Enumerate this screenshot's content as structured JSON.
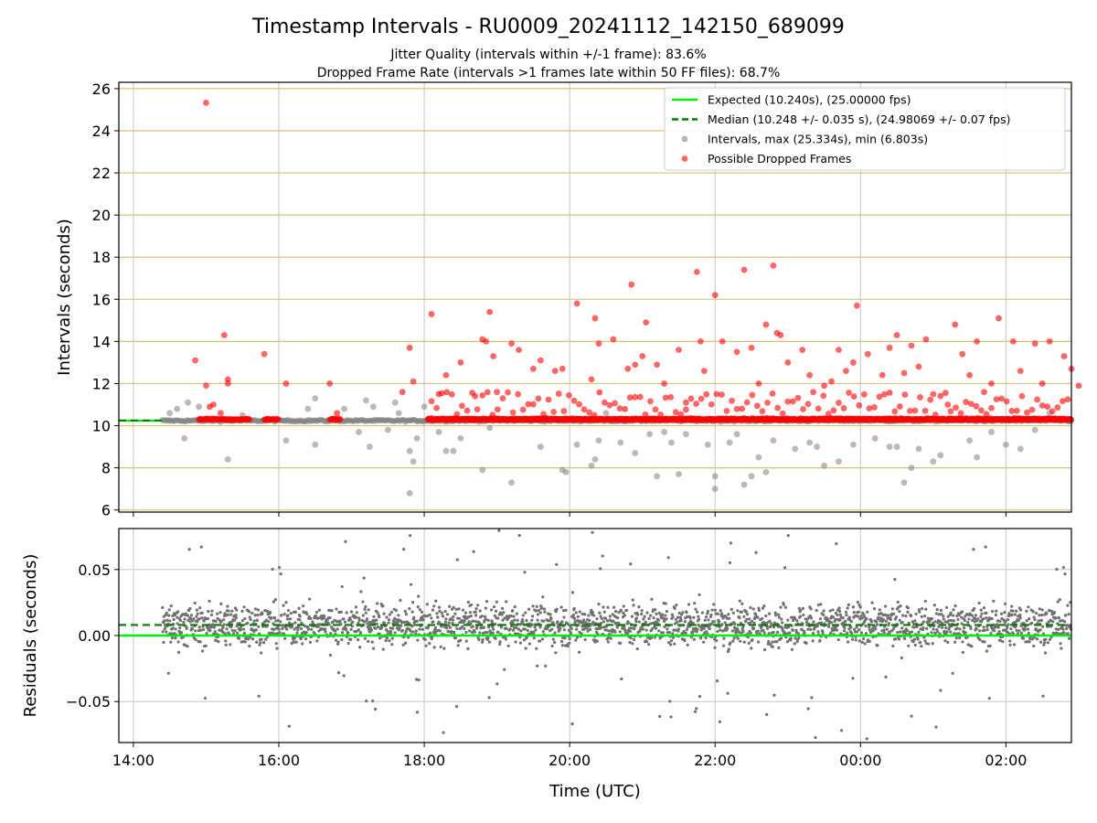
{
  "chart_data": [
    {
      "type": "scatter",
      "title": "Timestamp Intervals - RU0009_20241112_142150_689099",
      "subtitle_1": "Jitter Quality (intervals within +/-1 frame): 83.6%",
      "subtitle_2": "Dropped Frame Rate (intervals >1 frames late within 50 FF files): 68.7%",
      "ylabel": "Intervals (seconds)",
      "ylim": [
        5.9,
        26.3
      ],
      "yticks": [
        "6",
        "8",
        "10",
        "12",
        "14",
        "16",
        "18",
        "20",
        "22",
        "24",
        "26"
      ],
      "grid": true,
      "legend_position": "top-right",
      "expected_value": 10.24,
      "median_value": 10.248,
      "series": [
        {
          "name": "Expected (10.240s), (25.00000 fps)",
          "style": "solid-line",
          "color": "#00ee00"
        },
        {
          "name": "Median (10.248 +/- 0.035 s), (24.98069 +/- 0.07 fps)",
          "style": "dashed-line",
          "color": "#007a00"
        },
        {
          "name": "Intervals, max (25.334s), min (6.803s)",
          "style": "points",
          "color": "#808080",
          "points": [
            [
              14.5,
              10.6
            ],
            [
              14.6,
              10.8
            ],
            [
              14.7,
              9.4
            ],
            [
              14.75,
              11.1
            ],
            [
              14.9,
              10.9
            ],
            [
              15.3,
              8.4
            ],
            [
              15.5,
              10.5
            ],
            [
              16.1,
              9.3
            ],
            [
              16.4,
              10.8
            ],
            [
              16.5,
              9.1
            ],
            [
              16.5,
              11.3
            ],
            [
              16.9,
              10.8
            ],
            [
              17.1,
              9.7
            ],
            [
              17.2,
              11.2
            ],
            [
              17.25,
              9.0
            ],
            [
              17.3,
              10.9
            ],
            [
              17.5,
              9.8
            ],
            [
              17.6,
              11.1
            ],
            [
              17.65,
              10.6
            ],
            [
              17.8,
              8.8
            ],
            [
              17.85,
              8.3
            ],
            [
              17.8,
              6.8
            ],
            [
              17.9,
              9.4
            ],
            [
              18.0,
              10.9
            ],
            [
              18.2,
              9.7
            ],
            [
              18.3,
              8.8
            ],
            [
              18.4,
              8.8
            ],
            [
              18.5,
              9.4
            ],
            [
              18.8,
              7.9
            ],
            [
              18.9,
              9.9
            ],
            [
              19.2,
              7.3
            ],
            [
              19.6,
              9.0
            ],
            [
              19.9,
              7.9
            ],
            [
              19.95,
              7.8
            ],
            [
              20.1,
              9.1
            ],
            [
              20.3,
              8.1
            ],
            [
              20.35,
              8.4
            ],
            [
              20.4,
              9.3
            ],
            [
              20.5,
              10.6
            ],
            [
              20.7,
              9.2
            ],
            [
              20.9,
              8.7
            ],
            [
              21.1,
              9.6
            ],
            [
              21.2,
              7.6
            ],
            [
              21.3,
              9.7
            ],
            [
              21.4,
              9.2
            ],
            [
              21.5,
              7.7
            ],
            [
              21.6,
              9.6
            ],
            [
              21.9,
              9.1
            ],
            [
              22.0,
              7.0
            ],
            [
              22.0,
              7.6
            ],
            [
              22.2,
              9.2
            ],
            [
              22.3,
              9.6
            ],
            [
              22.4,
              7.2
            ],
            [
              22.5,
              7.6
            ],
            [
              22.6,
              8.5
            ],
            [
              22.7,
              7.8
            ],
            [
              22.8,
              9.3
            ],
            [
              23.1,
              8.9
            ],
            [
              23.3,
              9.2
            ],
            [
              23.4,
              9.0
            ],
            [
              23.5,
              8.1
            ],
            [
              23.7,
              8.3
            ],
            [
              23.9,
              9.1
            ],
            [
              24.2,
              9.4
            ],
            [
              24.4,
              9.0
            ],
            [
              24.5,
              9.0
            ],
            [
              24.6,
              7.3
            ],
            [
              24.7,
              8.0
            ],
            [
              24.8,
              8.9
            ],
            [
              25.0,
              8.3
            ],
            [
              25.1,
              8.6
            ],
            [
              25.5,
              9.3
            ],
            [
              25.6,
              8.5
            ],
            [
              25.8,
              9.7
            ],
            [
              26.0,
              9.1
            ],
            [
              26.2,
              8.9
            ],
            [
              26.4,
              9.8
            ],
            [
              26.6,
              10.6
            ]
          ]
        },
        {
          "name": "Possible Dropped Frames",
          "style": "points",
          "color": "#ff0000",
          "points": [
            [
              15.0,
              25.33
            ],
            [
              14.85,
              13.1
            ],
            [
              15.0,
              11.9
            ],
            [
              15.05,
              10.9
            ],
            [
              15.1,
              11.0
            ],
            [
              15.2,
              10.6
            ],
            [
              15.25,
              14.3
            ],
            [
              15.3,
              12.2
            ],
            [
              15.3,
              12.0
            ],
            [
              15.8,
              13.4
            ],
            [
              16.1,
              12.0
            ],
            [
              16.7,
              12.0
            ],
            [
              16.8,
              10.6
            ],
            [
              17.7,
              11.6
            ],
            [
              17.8,
              13.7
            ],
            [
              17.85,
              12.1
            ],
            [
              18.1,
              15.3
            ],
            [
              18.2,
              11.5
            ],
            [
              18.3,
              12.4
            ],
            [
              18.5,
              13.0
            ],
            [
              18.7,
              11.4
            ],
            [
              18.8,
              14.1
            ],
            [
              18.85,
              14.0
            ],
            [
              18.9,
              15.4
            ],
            [
              18.95,
              13.3
            ],
            [
              19.0,
              11.6
            ],
            [
              19.2,
              13.9
            ],
            [
              19.3,
              13.6
            ],
            [
              19.5,
              12.7
            ],
            [
              19.6,
              13.1
            ],
            [
              19.8,
              12.6
            ],
            [
              19.9,
              12.7
            ],
            [
              20.1,
              15.8
            ],
            [
              20.3,
              12.2
            ],
            [
              20.35,
              15.1
            ],
            [
              20.4,
              13.9
            ],
            [
              20.6,
              14.1
            ],
            [
              20.8,
              12.7
            ],
            [
              20.85,
              16.7
            ],
            [
              20.9,
              12.9
            ],
            [
              21.0,
              13.3
            ],
            [
              21.05,
              14.9
            ],
            [
              21.2,
              12.9
            ],
            [
              21.3,
              12.0
            ],
            [
              21.5,
              13.6
            ],
            [
              21.6,
              11.1
            ],
            [
              21.75,
              17.3
            ],
            [
              21.8,
              14.0
            ],
            [
              21.85,
              12.6
            ],
            [
              22.0,
              16.2
            ],
            [
              22.1,
              14.0
            ],
            [
              22.3,
              13.5
            ],
            [
              22.4,
              17.4
            ],
            [
              22.5,
              13.7
            ],
            [
              22.6,
              12.0
            ],
            [
              22.7,
              14.8
            ],
            [
              22.8,
              17.6
            ],
            [
              22.85,
              14.4
            ],
            [
              22.9,
              14.3
            ],
            [
              23.0,
              13.0
            ],
            [
              23.2,
              13.6
            ],
            [
              23.3,
              12.4
            ],
            [
              23.5,
              11.9
            ],
            [
              23.6,
              12.1
            ],
            [
              23.7,
              13.6
            ],
            [
              23.8,
              12.6
            ],
            [
              23.9,
              13.0
            ],
            [
              23.95,
              15.7
            ],
            [
              24.1,
              13.4
            ],
            [
              24.3,
              12.4
            ],
            [
              24.4,
              13.7
            ],
            [
              24.5,
              14.3
            ],
            [
              24.6,
              12.5
            ],
            [
              24.7,
              13.8
            ],
            [
              24.8,
              12.8
            ],
            [
              24.9,
              14.1
            ],
            [
              25.0,
              11.5
            ],
            [
              25.2,
              11.0
            ],
            [
              25.3,
              14.8
            ],
            [
              25.4,
              13.4
            ],
            [
              25.5,
              12.4
            ],
            [
              25.6,
              14.0
            ],
            [
              25.7,
              11.6
            ],
            [
              25.8,
              12.0
            ],
            [
              25.9,
              15.1
            ],
            [
              26.1,
              14.0
            ],
            [
              26.2,
              12.6
            ],
            [
              26.4,
              13.9
            ],
            [
              26.5,
              12.0
            ],
            [
              26.6,
              14.0
            ],
            [
              26.8,
              13.3
            ],
            [
              26.9,
              12.7
            ],
            [
              27.0,
              11.9
            ]
          ]
        }
      ]
    },
    {
      "type": "scatter",
      "xlabel": "Time (UTC)",
      "ylabel": "Residuals (seconds)",
      "ylim": [
        -0.081,
        0.081
      ],
      "yticks": [
        "−0.05",
        "0.00",
        "0.05"
      ],
      "xticks": [
        "14:00",
        "16:00",
        "18:00",
        "20:00",
        "22:00",
        "00:00",
        "02:00"
      ],
      "xlim_hours": [
        13.8,
        26.9
      ],
      "grid": true,
      "expected_residual": 0.0,
      "median_residual": 0.008,
      "scatter_density_note": "",
      "points_range_hours": [
        14.4,
        26.9
      ]
    }
  ]
}
